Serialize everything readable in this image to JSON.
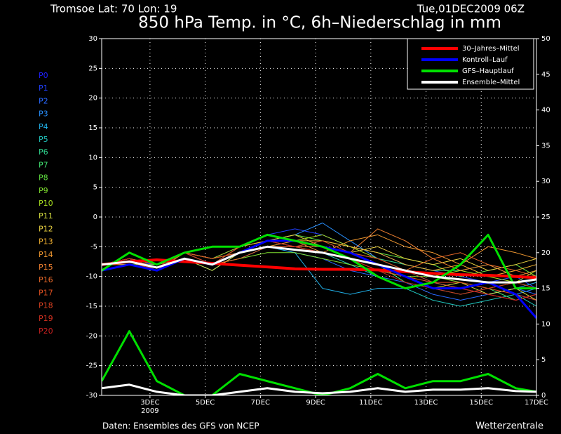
{
  "chart_data": {
    "type": "line",
    "location": "Tromsoe  Lat: 70 Lon: 19",
    "run": "Tue,01DEC2009 06Z",
    "title": "850 hPa Temp. in °C, 6h–Niederschlag in mm",
    "source": "Daten: Ensembles des GFS von NCEP",
    "credit": "Wetterzentrale",
    "x_year_label": "2009",
    "x": [
      1.25,
      2.25,
      3.25,
      4.25,
      5.25,
      6.25,
      7.25,
      8.25,
      9.25,
      10.25,
      11.25,
      12.25,
      13.25,
      14.25,
      15.25,
      16.25,
      17
    ],
    "xlim": [
      1.25,
      17
    ],
    "xticks": [
      {
        "value": 3,
        "label": "3DEC"
      },
      {
        "value": 5,
        "label": "5DEC"
      },
      {
        "value": 7,
        "label": "7DEC"
      },
      {
        "value": 9,
        "label": "9DEC"
      },
      {
        "value": 11,
        "label": "11DEC"
      },
      {
        "value": 13,
        "label": "13DEC"
      },
      {
        "value": 15,
        "label": "15DEC"
      },
      {
        "value": 17,
        "label": "17DEC"
      }
    ],
    "ylim": [
      -30,
      30
    ],
    "yticks": [
      -30,
      -25,
      -20,
      -15,
      -10,
      -5,
      0,
      5,
      10,
      15,
      20,
      25,
      30
    ],
    "y2lim": [
      0,
      50
    ],
    "y2ticks": [
      0,
      5,
      10,
      15,
      20,
      25,
      30,
      35,
      40,
      45,
      50
    ],
    "grid": true,
    "legend": "top-right",
    "series": [
      {
        "name": "30–Jahres–Mittel",
        "color": "#ff0000",
        "width": 4,
        "values": [
          -8,
          -7.5,
          -7.2,
          -7.5,
          -7.8,
          -8.1,
          -8.4,
          -8.7,
          -8.8,
          -8.8,
          -8.9,
          -9.2,
          -9.5,
          -9.7,
          -9.8,
          -10,
          -10.2
        ]
      },
      {
        "name": "Kontroll–Lauf",
        "color": "#0000ff",
        "width": 3,
        "values": [
          -9,
          -8,
          -9,
          -7,
          -8,
          -6,
          -4,
          -4,
          -5,
          -6,
          -8,
          -10,
          -12,
          -12,
          -11,
          -13,
          -17
        ]
      },
      {
        "name": "GFS–Hauptlauf",
        "color": "#00e000",
        "width": 3,
        "values": [
          -9,
          -6,
          -8,
          -6,
          -5,
          -5,
          -3,
          -4,
          -5,
          -7,
          -10,
          -12,
          -11,
          -8,
          -3,
          -12,
          -12
        ],
        "precip": [
          2,
          9,
          2,
          0,
          0,
          3,
          2,
          1,
          0,
          1,
          3,
          1,
          2,
          2,
          3,
          1,
          0.5
        ]
      },
      {
        "name": "Ensemble–Mittel",
        "color": "#ffffff",
        "width": 3,
        "values": [
          -8,
          -7.5,
          -8.5,
          -7,
          -8,
          -6,
          -5,
          -5.5,
          -6,
          -7,
          -8,
          -9,
          -10,
          -10.5,
          -11,
          -11,
          -10.5
        ],
        "precip": [
          1,
          1.5,
          0.5,
          0,
          0,
          0.5,
          1,
          0.5,
          0.3,
          0.5,
          1,
          0.5,
          0.8,
          0.8,
          1,
          0.6,
          0.5
        ]
      }
    ],
    "members": [
      {
        "name": "P0",
        "color": "#2020ff",
        "values": [
          -8,
          -7,
          -9,
          -7,
          -8,
          -6,
          -4,
          -4,
          -5,
          -6,
          -8,
          -10,
          -12,
          -12,
          -11,
          -13,
          -14
        ]
      },
      {
        "name": "P1",
        "color": "#2040ff",
        "values": [
          -8,
          -7.5,
          -8,
          -6,
          -7,
          -5,
          -3,
          -2,
          -3,
          -5,
          -6,
          -8,
          -9,
          -10,
          -11,
          -10,
          -12
        ]
      },
      {
        "name": "P2",
        "color": "#2868ff",
        "values": [
          -8,
          -8,
          -9,
          -7,
          -8,
          -7,
          -5,
          -6,
          -7,
          -9,
          -10,
          -11,
          -13,
          -14,
          -13,
          -12,
          -13
        ]
      },
      {
        "name": "P3",
        "color": "#2890ff",
        "values": [
          -8,
          -7,
          -8,
          -6,
          -8,
          -5,
          -4,
          -3,
          -1,
          -4,
          -7,
          -9,
          -11,
          -12,
          -11,
          -13,
          -12
        ]
      },
      {
        "name": "P4",
        "color": "#20b0e8",
        "values": [
          -8,
          -7.5,
          -9,
          -7,
          -9,
          -6,
          -5,
          -6,
          -12,
          -13,
          -12,
          -12,
          -11,
          -12,
          -13,
          -12,
          -11
        ]
      },
      {
        "name": "P5",
        "color": "#20c8c0",
        "values": [
          -8,
          -7,
          -8,
          -6,
          -7,
          -6,
          -4,
          -5,
          -6,
          -8,
          -10,
          -12,
          -14,
          -15,
          -14,
          -13,
          -15
        ]
      },
      {
        "name": "P6",
        "color": "#30d890",
        "values": [
          -8,
          -7.5,
          -9,
          -6,
          -8,
          -5,
          -3,
          -4,
          -5,
          -6,
          -7,
          -8,
          -9,
          -9,
          -8,
          -10,
          -9
        ]
      },
      {
        "name": "P7",
        "color": "#40e070",
        "values": [
          -8,
          -7,
          -8.5,
          -7,
          -8,
          -6,
          -5,
          -5,
          -4,
          -6,
          -8,
          -11,
          -12,
          -13,
          -12,
          -14,
          -13
        ]
      },
      {
        "name": "P8",
        "color": "#60e040",
        "values": [
          -8,
          -7,
          -9,
          -6,
          -7,
          -6,
          -4,
          -3,
          -4,
          -5,
          -6,
          -7,
          -8,
          -10,
          -9,
          -8,
          -10
        ]
      },
      {
        "name": "P9",
        "color": "#80e030",
        "values": [
          -8,
          -8,
          -8,
          -7,
          -8,
          -7,
          -6,
          -6,
          -7,
          -8,
          -9,
          -10,
          -10,
          -11,
          -12,
          -11,
          -12
        ]
      },
      {
        "name": "P10",
        "color": "#a8e020",
        "values": [
          -8,
          -7.5,
          -9,
          -6,
          -7,
          -5,
          -4,
          -4,
          -3,
          -5,
          -7,
          -9,
          -10,
          -9,
          -10,
          -11,
          -9
        ]
      },
      {
        "name": "P11",
        "color": "#d8e040",
        "values": [
          -8,
          -7,
          -8,
          -7,
          -9,
          -6,
          -5,
          -5,
          -6,
          -7,
          -9,
          -10,
          -12,
          -11,
          -13,
          -12,
          -14
        ]
      },
      {
        "name": "P12",
        "color": "#e8d040",
        "values": [
          -8,
          -7.5,
          -9,
          -6,
          -8,
          -6,
          -4,
          -3,
          -5,
          -6,
          -5,
          -7,
          -8,
          -7,
          -9,
          -8,
          -7
        ]
      },
      {
        "name": "P13",
        "color": "#f0b030",
        "values": [
          -8,
          -7,
          -8.5,
          -7,
          -8,
          -5,
          -4,
          -4,
          -4,
          -5,
          -6,
          -8,
          -9,
          -8,
          -10,
          -9,
          -8
        ]
      },
      {
        "name": "P14",
        "color": "#f09830",
        "values": [
          -8,
          -8,
          -9,
          -6,
          -7,
          -6,
          -5,
          -4,
          -6,
          -4,
          -3,
          -5,
          -6,
          -8,
          -5,
          -6,
          -7
        ]
      },
      {
        "name": "P15",
        "color": "#f08030",
        "values": [
          -8,
          -7,
          -8,
          -7,
          -8,
          -6,
          -4,
          -5,
          -5,
          -6,
          -2,
          -4,
          -7,
          -9,
          -8,
          -10,
          -9
        ]
      },
      {
        "name": "P16",
        "color": "#e86828",
        "values": [
          -8,
          -7.5,
          -9,
          -6,
          -8,
          -7,
          -5,
          -5,
          -6,
          -7,
          -8,
          -9,
          -7,
          -6,
          -8,
          -9,
          -10
        ]
      },
      {
        "name": "P17",
        "color": "#e05020",
        "values": [
          -8,
          -7,
          -8,
          -6,
          -7,
          -6,
          -4,
          -4,
          -5,
          -7,
          -9,
          -10,
          -11,
          -12,
          -13,
          -14,
          -13
        ]
      },
      {
        "name": "P18",
        "color": "#d84020",
        "values": [
          -8,
          -7.5,
          -9,
          -7,
          -8,
          -5,
          -3,
          -4,
          -5,
          -6,
          -7,
          -9,
          -11,
          -11,
          -12,
          -13,
          -14
        ]
      },
      {
        "name": "P19",
        "color": "#d03020",
        "values": [
          -8,
          -7,
          -8.5,
          -6,
          -8,
          -6,
          -5,
          -5,
          -4,
          -6,
          -8,
          -10,
          -12,
          -13,
          -12,
          -11,
          -12
        ]
      },
      {
        "name": "P20",
        "color": "#c82020",
        "values": [
          -8,
          -7,
          -9,
          -7,
          -8,
          -6,
          -4,
          -5,
          -6,
          -7,
          -9,
          -11,
          -12,
          -12,
          -13,
          -14,
          -13
        ]
      }
    ]
  }
}
